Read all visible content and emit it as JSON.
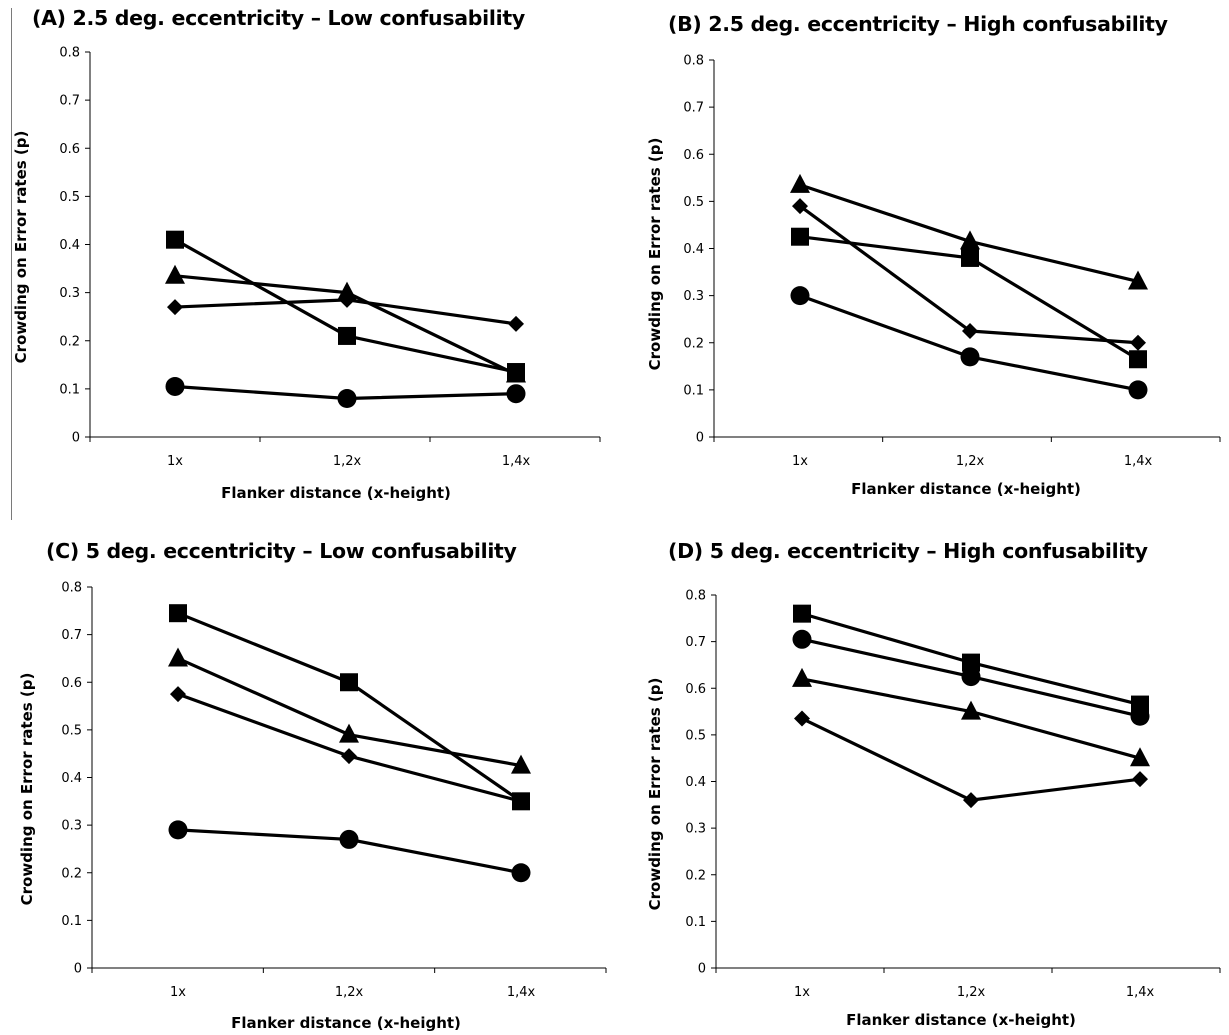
{
  "chart_data": [
    {
      "type": "line",
      "title": "(A) 2.5 deg. eccentricity – Low confusability",
      "xlabel": "Flanker distance (x-height)",
      "ylabel": "Crowding on Error rates (p)",
      "categories": [
        "1x",
        "1,2x",
        "1,4x"
      ],
      "ylim": [
        0,
        0.8
      ],
      "yticks": [
        "0",
        "0.1",
        "0.2",
        "0.3",
        "0.4",
        "0.5",
        "0.6",
        "0.7",
        "0.8"
      ],
      "grid": false,
      "series": [
        {
          "marker": "square",
          "values": [
            0.41,
            0.21,
            0.135
          ]
        },
        {
          "marker": "triangle",
          "values": [
            0.335,
            0.3,
            0.13
          ]
        },
        {
          "marker": "diamond",
          "values": [
            0.27,
            0.285,
            0.235
          ]
        },
        {
          "marker": "circle",
          "values": [
            0.105,
            0.08,
            0.09
          ]
        }
      ]
    },
    {
      "type": "line",
      "title": "(B) 2.5 deg. eccentricity – High confusability",
      "xlabel": "Flanker distance (x-height)",
      "ylabel": "Crowding on Error rates (p)",
      "categories": [
        "1x",
        "1,2x",
        "1,4x"
      ],
      "ylim": [
        0,
        0.8
      ],
      "yticks": [
        "0",
        "0.1",
        "0.2",
        "0.3",
        "0.4",
        "0.5",
        "0.6",
        "0.7",
        "0.8"
      ],
      "grid": false,
      "series": [
        {
          "marker": "triangle",
          "values": [
            0.535,
            0.415,
            0.33
          ]
        },
        {
          "marker": "diamond",
          "values": [
            0.49,
            0.225,
            0.2
          ]
        },
        {
          "marker": "square",
          "values": [
            0.425,
            0.38,
            0.165
          ]
        },
        {
          "marker": "circle",
          "values": [
            0.3,
            0.17,
            0.1
          ]
        }
      ]
    },
    {
      "type": "line",
      "title": "(C) 5 deg. eccentricity – Low confusability",
      "xlabel": "Flanker distance (x-height)",
      "ylabel": "Crowding on Error rates (p)",
      "categories": [
        "1x",
        "1,2x",
        "1,4x"
      ],
      "ylim": [
        0,
        0.8
      ],
      "yticks": [
        "0",
        "0.1",
        "0.2",
        "0.3",
        "0.4",
        "0.5",
        "0.6",
        "0.7",
        "0.8"
      ],
      "grid": false,
      "series": [
        {
          "marker": "square",
          "values": [
            0.745,
            0.6,
            0.35
          ]
        },
        {
          "marker": "triangle",
          "values": [
            0.65,
            0.49,
            0.425
          ]
        },
        {
          "marker": "diamond",
          "values": [
            0.575,
            0.445,
            0.35
          ]
        },
        {
          "marker": "circle",
          "values": [
            0.29,
            0.27,
            0.2
          ]
        }
      ]
    },
    {
      "type": "line",
      "title": "(D) 5 deg. eccentricity – High confusability",
      "xlabel": "Flanker distance (x-height)",
      "ylabel": "Crowding on Error rates (p)",
      "categories": [
        "1x",
        "1,2x",
        "1,4x"
      ],
      "ylim": [
        0,
        0.8
      ],
      "yticks": [
        "0",
        "0.1",
        "0.2",
        "0.3",
        "0.4",
        "0.5",
        "0.6",
        "0.7",
        "0.8"
      ],
      "grid": false,
      "series": [
        {
          "marker": "square",
          "values": [
            0.76,
            0.655,
            0.565
          ]
        },
        {
          "marker": "circle",
          "values": [
            0.705,
            0.625,
            0.54
          ]
        },
        {
          "marker": "triangle",
          "values": [
            0.62,
            0.55,
            0.45
          ]
        },
        {
          "marker": "diamond",
          "values": [
            0.535,
            0.36,
            0.405
          ]
        }
      ]
    }
  ],
  "colors": {
    "lines": "#000000",
    "axes": "#000000",
    "divider": "#7a7a7a",
    "background": "#ffffff"
  }
}
